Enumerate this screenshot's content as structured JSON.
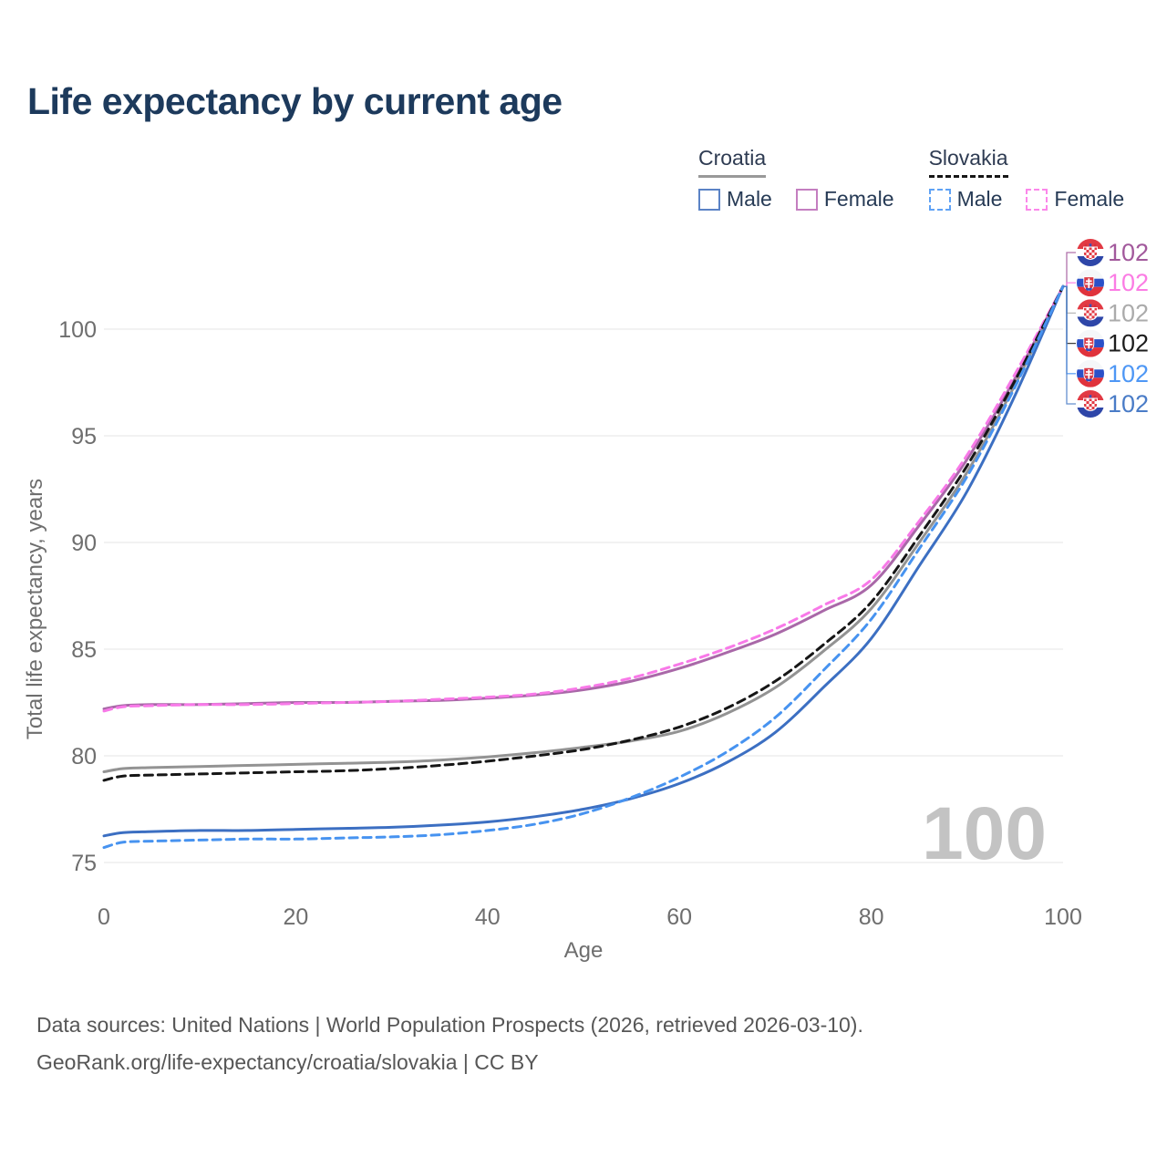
{
  "page": {
    "title": "Life expectancy by current age",
    "source_line1": "Data sources: United Nations | World Population Prospects (2026, retrieved 2026-03-10).",
    "source_line2": "GeoRank.org/life-expectancy/croatia/slovakia | CC BY"
  },
  "legend": {
    "groups": [
      {
        "country": "Croatia",
        "line_style": "solid",
        "underline_color": "#999999",
        "items": [
          {
            "label": "Male",
            "color": "#5b83c6",
            "dashed": false
          },
          {
            "label": "Female",
            "color": "#c47ec0",
            "dashed": false
          }
        ]
      },
      {
        "country": "Slovakia",
        "line_style": "dashed",
        "underline_color": "#161616",
        "items": [
          {
            "label": "Male",
            "color": "#5fa2f5",
            "dashed": true
          },
          {
            "label": "Female",
            "color": "#fb87ea",
            "dashed": true
          }
        ]
      }
    ]
  },
  "chart_data": {
    "type": "line",
    "title": "Life expectancy by current age",
    "xlabel": "Age",
    "ylabel": "Total life expectancy, years",
    "x_ticks": [
      0,
      20,
      40,
      60,
      80,
      100
    ],
    "y_ticks": [
      75,
      80,
      85,
      90,
      95,
      100
    ],
    "xlim": [
      0,
      100
    ],
    "ylim": [
      74.5,
      102.5
    ],
    "grid": "horizontal",
    "legend_position": "top-right",
    "age_cursor_watermark": "100",
    "x": [
      0,
      2,
      5,
      10,
      15,
      20,
      25,
      30,
      35,
      40,
      45,
      50,
      55,
      60,
      65,
      70,
      75,
      80,
      85,
      90,
      95,
      100
    ],
    "series": [
      {
        "id": "croatia-female",
        "name": "Croatia Female",
        "country": "Croatia",
        "sex": "Female",
        "color": "#a968a8",
        "dashed": false,
        "end_value": "102",
        "end_color": "#a2599c",
        "values": [
          82.2,
          82.35,
          82.4,
          82.4,
          82.45,
          82.5,
          82.5,
          82.55,
          82.6,
          82.7,
          82.85,
          83.1,
          83.5,
          84.1,
          84.85,
          85.7,
          86.8,
          88.0,
          90.8,
          93.9,
          97.7,
          102
        ]
      },
      {
        "id": "slovakia-female",
        "name": "Slovakia Female",
        "country": "Slovakia",
        "sex": "Female",
        "color": "#f879e8",
        "dashed": true,
        "end_value": "102",
        "end_color": "#fb7ce4",
        "values": [
          82.1,
          82.3,
          82.35,
          82.4,
          82.4,
          82.45,
          82.5,
          82.55,
          82.65,
          82.75,
          82.9,
          83.2,
          83.65,
          84.3,
          85.05,
          85.95,
          87.05,
          88.25,
          91.0,
          94.1,
          97.9,
          102
        ]
      },
      {
        "id": "croatia",
        "name": "Croatia",
        "country": "Croatia",
        "sex": "Both",
        "color": "#939393",
        "dashed": false,
        "end_value": "102",
        "end_color": "#ababab",
        "values": [
          79.25,
          79.4,
          79.45,
          79.5,
          79.55,
          79.6,
          79.65,
          79.7,
          79.8,
          79.95,
          80.15,
          80.4,
          80.7,
          81.15,
          82.0,
          83.2,
          84.9,
          86.9,
          90.0,
          93.3,
          97.4,
          102
        ]
      },
      {
        "id": "slovakia",
        "name": "Slovakia",
        "country": "Slovakia",
        "sex": "Both",
        "color": "#161616",
        "dashed": true,
        "end_value": "102",
        "end_color": "#1d1d1d",
        "values": [
          78.85,
          79.05,
          79.1,
          79.15,
          79.2,
          79.25,
          79.3,
          79.4,
          79.55,
          79.75,
          80.0,
          80.3,
          80.75,
          81.35,
          82.25,
          83.5,
          85.2,
          87.2,
          90.3,
          93.6,
          97.6,
          102
        ]
      },
      {
        "id": "slovakia-male",
        "name": "Slovakia Male",
        "country": "Slovakia",
        "sex": "Male",
        "color": "#4793f0",
        "dashed": true,
        "end_value": "102",
        "end_color": "#4e97f5",
        "values": [
          75.7,
          75.95,
          76.0,
          76.05,
          76.1,
          76.1,
          76.15,
          76.2,
          76.3,
          76.5,
          76.8,
          77.3,
          78.05,
          79.0,
          80.2,
          81.8,
          84.0,
          86.4,
          89.7,
          93.1,
          97.3,
          102
        ]
      },
      {
        "id": "croatia-male",
        "name": "Croatia Male",
        "country": "Croatia",
        "sex": "Male",
        "color": "#3c6fc2",
        "dashed": false,
        "end_value": "102",
        "end_color": "#4a7cc7",
        "values": [
          76.25,
          76.4,
          76.45,
          76.5,
          76.5,
          76.55,
          76.6,
          76.65,
          76.75,
          76.9,
          77.15,
          77.5,
          78.0,
          78.7,
          79.7,
          81.1,
          83.2,
          85.5,
          88.9,
          92.4,
          96.9,
          102
        ]
      }
    ],
    "colors": {
      "title": "#1d3a5c",
      "axis_text": "#6e6e6e",
      "gridline": "#e9e9e9",
      "watermark": "#c3c3c3",
      "source_text": "#565656"
    }
  }
}
